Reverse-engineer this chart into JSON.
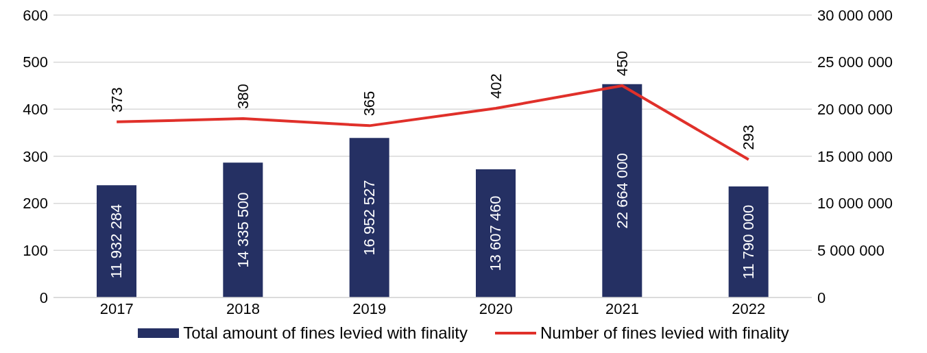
{
  "chart_data": {
    "type": "bar",
    "categories": [
      "2017",
      "2018",
      "2019",
      "2020",
      "2021",
      "2022"
    ],
    "series": [
      {
        "name": "Total amount of fines levied with finality",
        "axis": "y2",
        "color": "#253063",
        "values": [
          11932284,
          14335500,
          16952527,
          13607460,
          22664000,
          11790000
        ],
        "value_labels": [
          "11 932 284",
          "14 335 500",
          "16 952 527",
          "13 607 460",
          "22 664 000",
          "11 790 000"
        ]
      },
      {
        "name": "Number of fines levied with finality",
        "type": "line",
        "axis": "y",
        "color": "#e0302a",
        "values": [
          373,
          380,
          365,
          402,
          450,
          293
        ],
        "value_labels": [
          "373",
          "380",
          "365",
          "402",
          "450",
          "293"
        ]
      }
    ],
    "ylim": [
      0,
      600
    ],
    "yticks": [
      0,
      100,
      200,
      300,
      400,
      500,
      600
    ],
    "y2lim": [
      0,
      30000000
    ],
    "y2ticks": [
      {
        "value": 0,
        "label": "0"
      },
      {
        "value": 5000000,
        "label": "5 000 000"
      },
      {
        "value": 10000000,
        "label": "10 000 000"
      },
      {
        "value": 15000000,
        "label": "15 000 000"
      },
      {
        "value": 20000000,
        "label": "20 000 000"
      },
      {
        "value": 25000000,
        "label": "25 000 000"
      },
      {
        "value": 30000000,
        "label": "30 000 000"
      }
    ],
    "grid": "y",
    "legend": "bottom",
    "marker": "none",
    "line_style": "solid"
  }
}
